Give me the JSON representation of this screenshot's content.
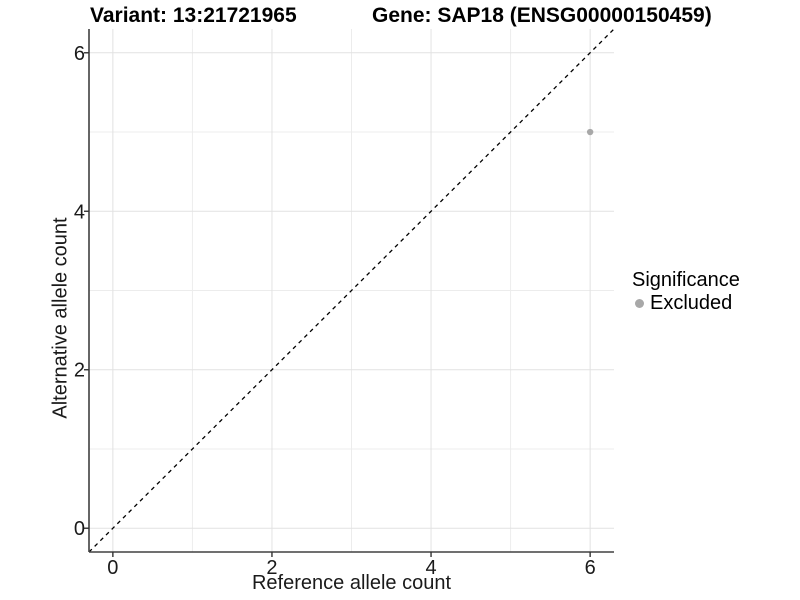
{
  "titles": {
    "variant": "Variant: 13:21721965",
    "gene": "Gene: SAP18 (ENSG00000150459)"
  },
  "axes": {
    "x_label": "Reference allele count",
    "y_label": "Alternative allele count"
  },
  "legend": {
    "title": "Significance",
    "items": [
      {
        "label": "Excluded",
        "color": "#a8a8a8"
      }
    ]
  },
  "chart_data": {
    "type": "scatter",
    "title": "Variant: 13:21721965 | Gene: SAP18 (ENSG00000150459)",
    "xlabel": "Reference allele count",
    "ylabel": "Alternative allele count",
    "xlim": [
      -0.3,
      6.3
    ],
    "ylim": [
      -0.3,
      6.3
    ],
    "x_ticks": [
      0,
      2,
      4,
      6
    ],
    "y_ticks": [
      0,
      2,
      4,
      6
    ],
    "x_tick_labels": [
      "0",
      "2",
      "4",
      "6"
    ],
    "y_tick_labels": [
      "0",
      "2",
      "4",
      "6"
    ],
    "x_minor_gridlines": [
      1,
      3,
      5
    ],
    "y_minor_gridlines": [
      1,
      3,
      5
    ],
    "grid": true,
    "legend_position": "right",
    "series": [
      {
        "name": "Excluded",
        "color": "#a8a8a8",
        "points": [
          {
            "x": 6,
            "y": 5
          }
        ]
      }
    ],
    "reference_line": {
      "equation": "y = x",
      "from": [
        -0.3,
        -0.3
      ],
      "to": [
        6.3,
        6.3
      ],
      "style": "dashed",
      "color": "#000000"
    }
  },
  "colors": {
    "background": "#ffffff",
    "grid_major": "#e2e2e2",
    "grid_minor": "#ececec",
    "axis_line": "#404040",
    "tick_mark": "#333333",
    "tick_text": "#1a1a1a",
    "point": "#a8a8a8",
    "reference_line": "#000000"
  }
}
